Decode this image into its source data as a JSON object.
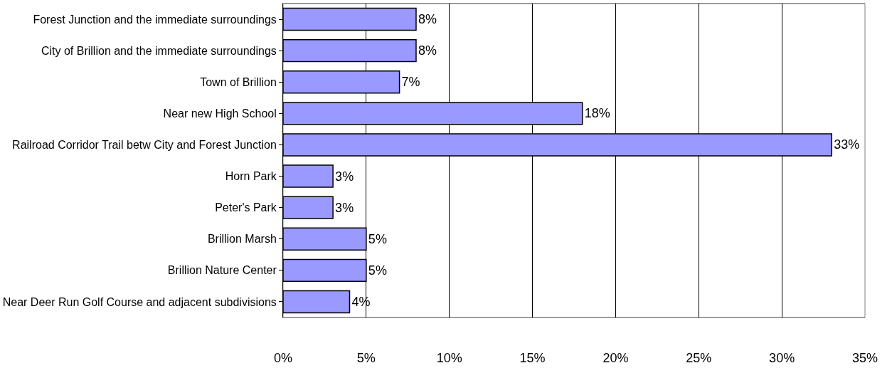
{
  "chart_data": {
    "type": "bar",
    "orientation": "horizontal",
    "categories": [
      "Forest Junction and the immediate surroundings",
      "City of Brillion and the immediate surroundings",
      "Town of Brillion",
      "Near new High School",
      "Railroad Corridor Trail betw City and Forest Junction",
      "Horn Park",
      "Peter's Park",
      "Brillion Marsh",
      "Brillion Nature Center",
      "Near Deer Run Golf Course and adjacent subdivisions"
    ],
    "values": [
      8,
      8,
      7,
      18,
      33,
      3,
      3,
      5,
      5,
      4
    ],
    "value_labels": [
      "8%",
      "8%",
      "7%",
      "18%",
      "33%",
      "3%",
      "3%",
      "5%",
      "5%",
      "4%"
    ],
    "color": "#9999ff",
    "xlim": [
      0,
      35
    ],
    "xticks": [
      {
        "value": 0,
        "label": "0%"
      },
      {
        "value": 5,
        "label": "5%"
      },
      {
        "value": 10,
        "label": "10%"
      },
      {
        "value": 15,
        "label": "15%"
      },
      {
        "value": 20,
        "label": "20%"
      },
      {
        "value": 25,
        "label": "25%"
      },
      {
        "value": 30,
        "label": "30%"
      },
      {
        "value": 35,
        "label": "35%"
      }
    ],
    "grid": "x",
    "legend": false
  }
}
